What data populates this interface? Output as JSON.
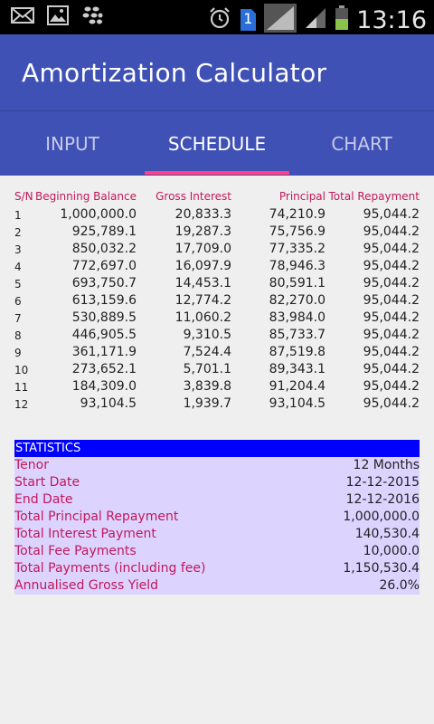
{
  "status_bar": {
    "time": "13:16",
    "sim_badge": "1",
    "icons": [
      "mail-icon",
      "image-icon",
      "blackberry-icon",
      "alarm-icon",
      "sim-icon",
      "signal-icon",
      "signal-icon-2",
      "battery-icon"
    ]
  },
  "app": {
    "title": "Amortization Calculator"
  },
  "tabs": [
    {
      "label": "INPUT"
    },
    {
      "label": "SCHEDULE"
    },
    {
      "label": "CHART"
    }
  ],
  "schedule": {
    "headers": [
      "S/N",
      "Beginning Balance",
      "Gross Interest",
      "Principal",
      "Total Repayment"
    ],
    "rows": [
      [
        "1",
        "1,000,000.0",
        "20,833.3",
        "74,210.9",
        "95,044.2"
      ],
      [
        "2",
        "925,789.1",
        "19,287.3",
        "75,756.9",
        "95,044.2"
      ],
      [
        "3",
        "850,032.2",
        "17,709.0",
        "77,335.2",
        "95,044.2"
      ],
      [
        "4",
        "772,697.0",
        "16,097.9",
        "78,946.3",
        "95,044.2"
      ],
      [
        "5",
        "693,750.7",
        "14,453.1",
        "80,591.1",
        "95,044.2"
      ],
      [
        "6",
        "613,159.6",
        "12,774.2",
        "82,270.0",
        "95,044.2"
      ],
      [
        "7",
        "530,889.5",
        "11,060.2",
        "83,984.0",
        "95,044.2"
      ],
      [
        "8",
        "446,905.5",
        "9,310.5",
        "85,733.7",
        "95,044.2"
      ],
      [
        "9",
        "361,171.9",
        "7,524.4",
        "87,519.8",
        "95,044.2"
      ],
      [
        "10",
        "273,652.1",
        "5,701.1",
        "89,343.1",
        "95,044.2"
      ],
      [
        "11",
        "184,309.0",
        "3,839.8",
        "91,204.4",
        "95,044.2"
      ],
      [
        "12",
        "93,104.5",
        "1,939.7",
        "93,104.5",
        "95,044.2"
      ]
    ]
  },
  "statistics": {
    "title": "STATISTICS",
    "items": [
      {
        "label": "Tenor",
        "value": "12 Months"
      },
      {
        "label": "Start Date",
        "value": "12-12-2015"
      },
      {
        "label": "End Date",
        "value": "12-12-2016"
      },
      {
        "label": "Total Principal Repayment",
        "value": "1,000,000.0"
      },
      {
        "label": "Total Interest Payment",
        "value": "140,530.4"
      },
      {
        "label": "Total Fee Payments",
        "value": "10,000.0"
      },
      {
        "label": "Total Payments (including fee)",
        "value": "1,150,530.4"
      },
      {
        "label": "Annualised Gross Yield",
        "value": "26.0%"
      }
    ]
  },
  "colors": {
    "primary": "#3f51b5",
    "accent": "#ff4081",
    "header_text": "#c2185b",
    "stats_header_bg": "#0000ff",
    "stats_body_bg": "#dcd3ff"
  }
}
